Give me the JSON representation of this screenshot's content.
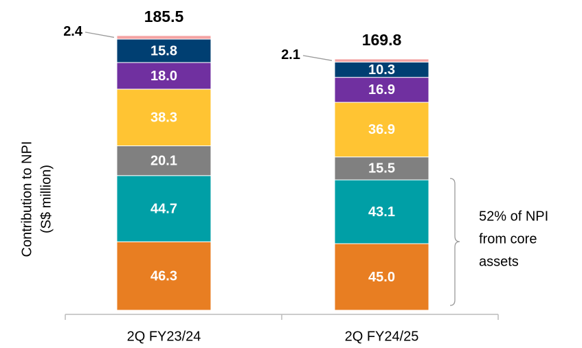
{
  "chart_data": {
    "type": "stacked_bar",
    "categories": [
      "2Q FY23/24",
      "2Q FY24/25"
    ],
    "y_label": [
      "Contribution to NPI",
      "(S$ million)"
    ],
    "totals": [
      185.5,
      169.8
    ],
    "annotation": [
      "52% of NPI",
      "from core",
      "assets"
    ],
    "series": [
      {
        "color": "#E87E22",
        "values": [
          46.3,
          45.0
        ],
        "value_labels": [
          "46.3",
          "45.0"
        ]
      },
      {
        "color": "#009FA6",
        "values": [
          44.7,
          43.1
        ]
      },
      {
        "color": "#808080",
        "values": [
          20.1,
          15.5
        ]
      },
      {
        "color": "#FFC433",
        "values": [
          38.3,
          36.9
        ]
      },
      {
        "color": "#7030A0",
        "values": [
          18.0,
          16.9
        ],
        "value_labels": [
          "18.0",
          "16.9"
        ]
      },
      {
        "color": "#003F72",
        "values": [
          15.8,
          10.3
        ]
      },
      {
        "color": "#F4A3A3",
        "values": [
          2.4,
          2.1
        ]
      }
    ]
  }
}
